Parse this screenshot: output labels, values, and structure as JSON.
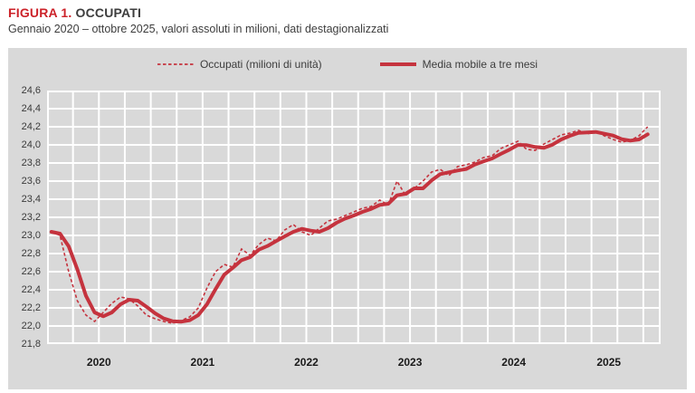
{
  "header": {
    "figure_label": "FIGURA 1.",
    "title": "OCCUPATI",
    "subtitle": "Gennaio 2020 – ottobre 2025, valori assoluti in milioni, dati destagionalizzati"
  },
  "legend": {
    "occupati_label": "Occupati (milioni di unità)",
    "media_mobile_label": "Media mobile a tre mesi"
  },
  "colors": {
    "title_red": "#cc2229",
    "line_red": "#c5333e",
    "panel_bg": "#d9d9d9",
    "grid_line": "#ffffff",
    "text_dark": "#3c3c3c"
  },
  "chart_data": {
    "type": "line",
    "title": "Occupati",
    "x_start": "2020-01",
    "x_end": "2025-10",
    "months_count": 70,
    "x_tick_labels": [
      "2020",
      "2021",
      "2022",
      "2023",
      "2024",
      "2025"
    ],
    "y_tick_labels": [
      "24,6",
      "24,4",
      "24,2",
      "24,0",
      "23,8",
      "23,6",
      "23,4",
      "23,2",
      "23,0",
      "22,8",
      "22,6",
      "22,4",
      "22,2",
      "22,0",
      "21,8"
    ],
    "ylim": [
      21.8,
      24.6
    ],
    "y_step": 0.2,
    "grid": true,
    "legend_position": "top",
    "series": [
      {
        "name": "Occupati (milioni di unità)",
        "style": "dashed",
        "values": [
          23.04,
          23.0,
          22.6,
          22.28,
          22.12,
          22.05,
          22.15,
          22.25,
          22.32,
          22.3,
          22.22,
          22.12,
          22.08,
          22.05,
          22.03,
          22.06,
          22.1,
          22.2,
          22.42,
          22.6,
          22.68,
          22.65,
          22.85,
          22.78,
          22.9,
          22.97,
          22.94,
          23.06,
          23.12,
          23.04,
          23.0,
          23.08,
          23.16,
          23.18,
          23.22,
          23.26,
          23.3,
          23.32,
          23.39,
          23.34,
          23.6,
          23.44,
          23.52,
          23.6,
          23.7,
          23.73,
          23.66,
          23.76,
          23.78,
          23.81,
          23.86,
          23.88,
          23.96,
          24.0,
          24.04,
          23.95,
          23.94,
          24.01,
          24.06,
          24.11,
          24.13,
          24.16,
          24.12,
          24.15,
          24.1,
          24.06,
          24.03,
          24.05,
          24.1,
          24.2
        ]
      },
      {
        "name": "Media mobile a tre mesi",
        "style": "solid",
        "derived": "3-month moving average of series 1"
      }
    ]
  }
}
